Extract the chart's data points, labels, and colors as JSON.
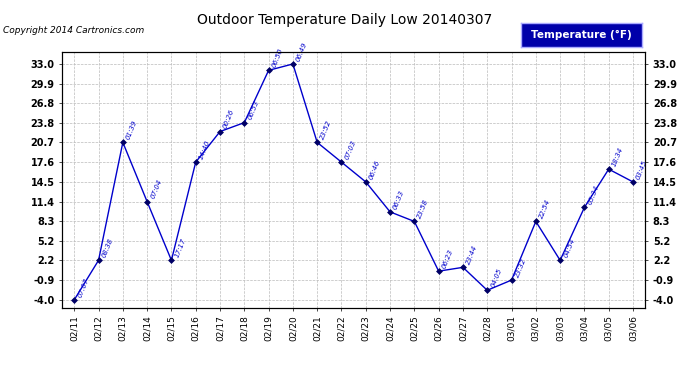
{
  "title": "Outdoor Temperature Daily Low 20140307",
  "copyright": "Copyright 2014 Cartronics.com",
  "legend_label": "Temperature (°F)",
  "x_labels": [
    "02/11",
    "02/12",
    "02/13",
    "02/14",
    "02/15",
    "02/16",
    "02/17",
    "02/18",
    "02/19",
    "02/20",
    "02/21",
    "02/22",
    "02/23",
    "02/24",
    "02/25",
    "02/26",
    "02/27",
    "02/28",
    "03/01",
    "03/02",
    "03/03",
    "03/04",
    "03/05",
    "03/06"
  ],
  "y_values": [
    -4.0,
    2.2,
    20.7,
    11.4,
    2.2,
    17.6,
    22.4,
    23.8,
    32.0,
    33.0,
    20.7,
    17.6,
    14.5,
    9.8,
    8.3,
    0.5,
    1.1,
    -2.5,
    -0.9,
    8.3,
    2.2,
    10.5,
    16.5,
    14.5
  ],
  "time_labels": [
    "07:07",
    "08:38",
    "01:39",
    "07:04",
    "17:17",
    "14:40",
    "00:26",
    "06:53",
    "06:50",
    "06:49",
    "23:52",
    "07:03",
    "06:46",
    "06:33",
    "23:58",
    "06:23",
    "23:44",
    "04:05",
    "23:32",
    "22:54",
    "04:54",
    "05:34",
    "18:34",
    "03:45"
  ],
  "line_color": "#0000cc",
  "marker_color": "#000066",
  "bg_color": "#ffffff",
  "plot_bg_color": "#ffffff",
  "grid_color": "#bbbbbb",
  "title_color": "#000000",
  "y_ticks": [
    33.0,
    29.9,
    26.8,
    23.8,
    20.7,
    17.6,
    14.5,
    11.4,
    8.3,
    5.2,
    2.2,
    -0.9,
    -4.0
  ],
  "ylim": [
    -5.2,
    34.8
  ],
  "legend_bg": "#0000aa",
  "legend_text_color": "#ffffff"
}
